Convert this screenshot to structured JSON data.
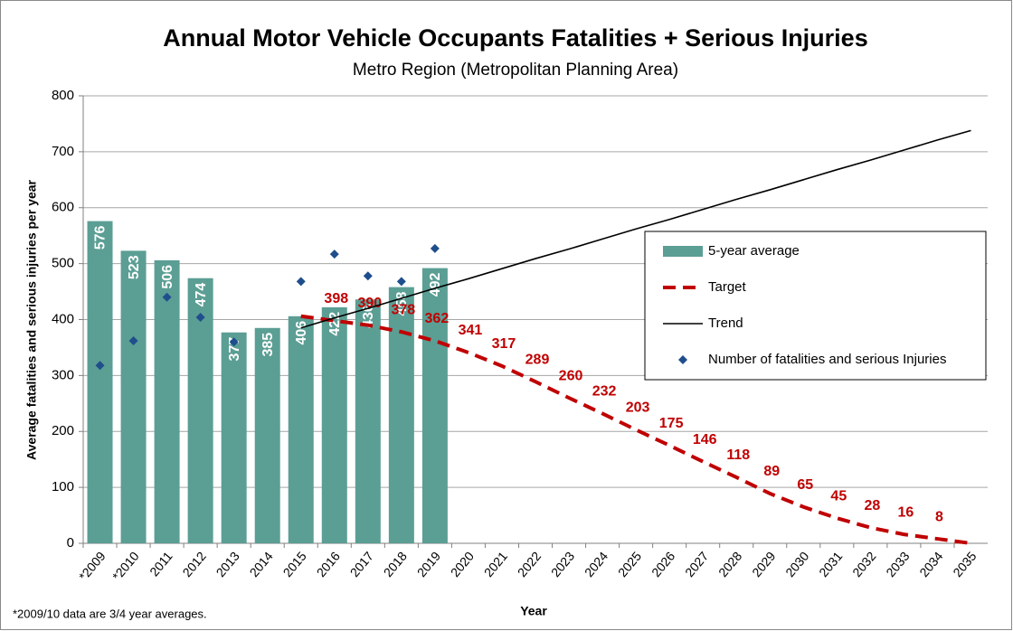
{
  "chart_data": {
    "type": "bar",
    "title": "Annual Motor Vehicle Occupants Fatalities + Serious Injuries",
    "subtitle": "Metro Region (Metropolitan Planning Area)",
    "x_label": "Year",
    "y_label": "Average fatalities and serious injuries per year",
    "footnote": "*2009/10 data are 3/4 year averages.",
    "categories": [
      "*2009",
      "*2010",
      "2011",
      "2012",
      "2013",
      "2014",
      "2015",
      "2016",
      "2017",
      "2018",
      "2019",
      "2020",
      "2021",
      "2022",
      "2023",
      "2024",
      "2025",
      "2026",
      "2027",
      "2028",
      "2029",
      "2030",
      "2031",
      "2032",
      "2033",
      "2034",
      "2035"
    ],
    "ylim": [
      0,
      800
    ],
    "yticks": [
      0,
      100,
      200,
      300,
      400,
      500,
      600,
      700,
      800
    ],
    "grid": true,
    "legend": "right",
    "series": [
      {
        "name": "5-year average",
        "type": "bar",
        "color": "#5b9e94",
        "values": [
          576,
          523,
          506,
          474,
          377,
          385,
          406,
          422,
          436,
          458,
          492,
          null,
          null,
          null,
          null,
          null,
          null,
          null,
          null,
          null,
          null,
          null,
          null,
          null,
          null,
          null,
          null
        ]
      },
      {
        "name": "Target",
        "type": "line",
        "dashed": true,
        "color": "#c00000",
        "values": [
          null,
          null,
          null,
          null,
          null,
          null,
          406,
          398,
          390,
          378,
          362,
          341,
          317,
          289,
          260,
          232,
          203,
          175,
          146,
          118,
          89,
          65,
          45,
          28,
          16,
          8,
          0
        ],
        "value_labels": [
          null,
          null,
          null,
          null,
          null,
          null,
          null,
          "398",
          "390",
          "378",
          "362",
          "341",
          "317",
          "289",
          "260",
          "232",
          "203",
          "175",
          "146",
          "118",
          "89",
          "65",
          "45",
          "28",
          "16",
          "8",
          null
        ]
      },
      {
        "name": "Trend",
        "type": "line",
        "dashed": false,
        "color": "#000000",
        "values": [
          null,
          null,
          null,
          null,
          null,
          null,
          385,
          403,
          420,
          438,
          456,
          473,
          491,
          509,
          526,
          544,
          562,
          579,
          597,
          615,
          632,
          650,
          668,
          685,
          703,
          721,
          738
        ]
      },
      {
        "name": "Number of fatalities and serious Injuries",
        "type": "scatter",
        "color": "#1f4e8c",
        "values": [
          318,
          362,
          440,
          404,
          360,
          null,
          468,
          517,
          478,
          468,
          527,
          null,
          null,
          null,
          null,
          null,
          null,
          null,
          null,
          null,
          null,
          null,
          null,
          null,
          null,
          null,
          null
        ]
      }
    ]
  }
}
